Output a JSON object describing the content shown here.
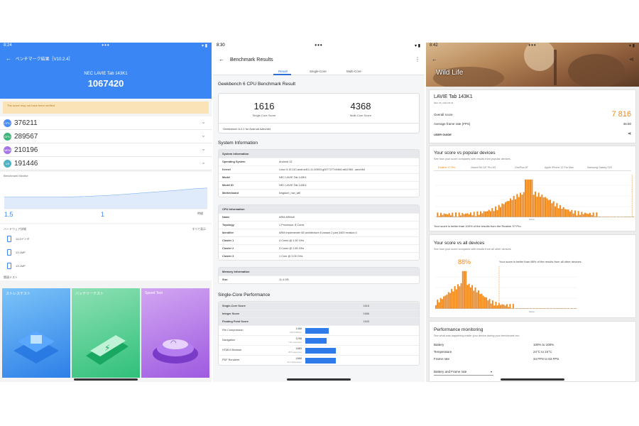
{
  "antutu": {
    "status_time": "8:24",
    "title": "ベンチマーク結果［V10.2.4］",
    "device": "NEC LAVIE Tab 143K1",
    "total_score": "1067420",
    "warning": "The score may not have been verified",
    "subscores": [
      {
        "icon": "CPU",
        "value": "376211",
        "color": "#4c8df6"
      },
      {
        "icon": "GPU",
        "value": "289567",
        "color": "#3fb67a"
      },
      {
        "icon": "MEM",
        "value": "210196",
        "color": "#a774e8"
      },
      {
        "icon": "UX",
        "value": "191446",
        "color": "#4db3c5"
      }
    ],
    "chart_label": "Benchmark Monitor",
    "battery_1": "1.5",
    "battery_2": "1",
    "time_label": "時間",
    "hardware_section": "ハードウェア詳細",
    "more_label": "すべて表示",
    "hardware_items": [
      "14.5インチ",
      "13.1MP",
      "13.1MP"
    ],
    "related_section": "関連テスト",
    "tiles": [
      {
        "title": "ストレステスト",
        "color_a": "#7cc4f8",
        "color_b": "#2d7fe8"
      },
      {
        "title": "バッテリーテスト",
        "color_a": "#8ee0b4",
        "color_b": "#2fc07a"
      },
      {
        "title": "Speed Test",
        "color_a": "#d2a6f2",
        "color_b": "#9e5ae0"
      }
    ],
    "accent": "#3a86f5"
  },
  "geekbench": {
    "status_time": "8:30",
    "title": "Benchmark Results",
    "tabs": [
      "Result",
      "Single-Core",
      "Multi-Core"
    ],
    "result_heading": "Geekbench 6 CPU Benchmark Result",
    "single_score": "1616",
    "single_label": "Single-Core Score",
    "multi_score": "4368",
    "multi_label": "Multi-Core Score",
    "version_line": "Geekbench 6.2.2 for Android AArch64",
    "system_heading": "System Information",
    "sysinfo": {
      "header": "System Information",
      "rows": [
        {
          "k": "Operating System",
          "v": "Android 13"
        },
        {
          "k": "Kernel",
          "v": "Linux 5.15.110-android14-11-00893-g0077277c94b6-ab11960...aarch64"
        },
        {
          "k": "Model",
          "v": "NEC LAVIE Tab 143K1"
        },
        {
          "k": "Model ID",
          "v": "NEC LAVIE Tab 143K1"
        },
        {
          "k": "Motherboard",
          "v": "kingdom_row_wifi"
        }
      ]
    },
    "cpuinfo": {
      "header": "CPU Information",
      "rows": [
        {
          "k": "Name",
          "v": "ARM ARMv8"
        },
        {
          "k": "Topology",
          "v": "1 Processor, 8 Cores"
        },
        {
          "k": "Identifier",
          "v": "ARM implementer 65 architecture 8 variant 2 part 3400 revision 0"
        },
        {
          "k": "Cluster 1",
          "v": "4 Cores @ 1.90 GHz"
        },
        {
          "k": "Cluster 2",
          "v": "3 Cores @ 2.85 GHz"
        },
        {
          "k": "Cluster 3",
          "v": "1 Core @ 3.05 GHz"
        }
      ]
    },
    "meminfo": {
      "header": "Memory Information",
      "rows": [
        {
          "k": "Size",
          "v": "11.4 GB"
        }
      ]
    },
    "single_heading": "Single-Core Performance",
    "single_summary": [
      {
        "k": "Single-Core Score",
        "v": "1616"
      },
      {
        "k": "Integer Score",
        "v": "1656"
      },
      {
        "k": "Floating Point Score",
        "v": "1543"
      }
    ],
    "perf": [
      {
        "k": "File Compression",
        "score": "1468",
        "sub": "210.8 MB/sec",
        "frac": 0.62
      },
      {
        "k": "Navigation",
        "score": "1298",
        "sub": "7.82 routes/sec",
        "frac": 0.55
      },
      {
        "k": "HTML5 Browser",
        "score": "1883",
        "sub": "38.5 pages/sec",
        "frac": 0.8
      },
      {
        "k": "PDF Renderer",
        "score": "1868",
        "sub": "43.1 Mpixels/sec",
        "frac": 0.79
      }
    ],
    "accent": "#2f7bea"
  },
  "wildlife": {
    "status_time": "8:42",
    "hero_title": "Wild Life",
    "device": "LAVIE Tab 143K1",
    "date": "DEC 05, 2024 08:42",
    "overall_label": "Overall score",
    "overall_score": "7 816",
    "fps_label": "Average frame rate (FPS)",
    "fps_value": "46.80",
    "user_guide": "USER GUIDE",
    "popular_heading": "Your score vs popular devices",
    "popular_desc": "See how your score compares with results from popular devices.",
    "popular_tabs": [
      "Realme X7 Pro",
      "Xiaomi Mi 10T Pro 5G",
      "OnePlus 8T",
      "Apple iPhone 12 Pro Max",
      "Samsung Galaxy S23"
    ],
    "popular_axis": "Score",
    "popular_result": "Your score is better than 100% of the results from the Realme X7 Pro.",
    "all_heading": "Your score vs all devices",
    "all_desc": "See how your score compares with results from all other devices.",
    "all_percent": "88%",
    "all_text": "Your score is better than 88% of the results from all other devices.",
    "all_axis": "Score",
    "perf_heading": "Performance monitoring",
    "perf_desc": "See what was happening inside your device during your benchmark run.",
    "perf_rows": [
      {
        "k": "Battery",
        "v": "100% to 100%"
      },
      {
        "k": "Temperature",
        "v": "24°C to 24°C"
      },
      {
        "k": "Frame rate",
        "v": "34 FPS to 63 FPS"
      }
    ],
    "dropdown": "Battery and Frame rate",
    "accent": "#f28a1e"
  }
}
